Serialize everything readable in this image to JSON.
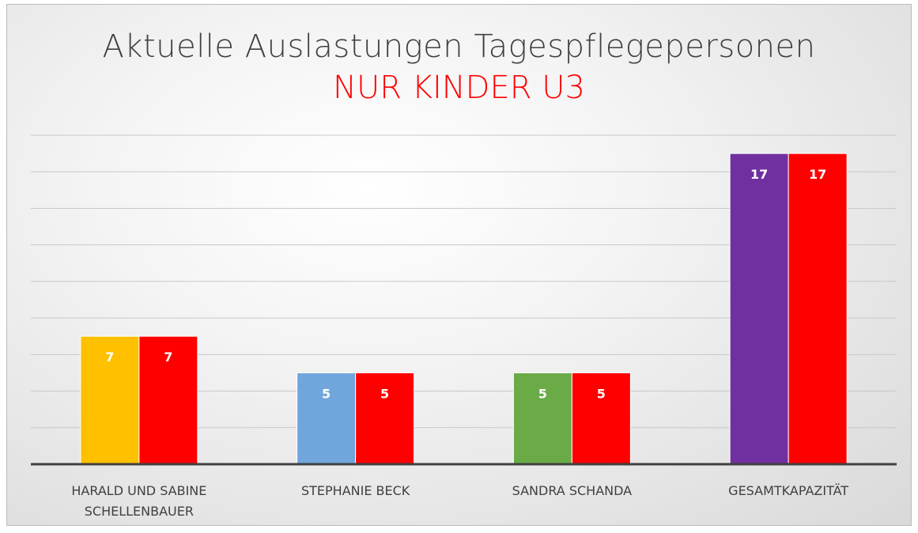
{
  "chart_data": {
    "type": "bar",
    "title": "Aktuelle Auslastungen Tagespflegepersonen",
    "subtitle": "NUR KINDER U3",
    "categories": [
      "HARALD UND SABINE SCHELLENBAUER",
      "STEPHANIE BECK",
      "SANDRA SCHANDA",
      "GESAMTKAPAZITÄT"
    ],
    "series": [
      {
        "colors": [
          "#ffc000",
          "#70a6dc",
          "#6aab48",
          "#7030a0"
        ],
        "values": [
          7,
          5,
          5,
          17
        ]
      },
      {
        "color": "#ff0000",
        "values": [
          7,
          5,
          5,
          17
        ]
      }
    ],
    "ylim": [
      0,
      18
    ],
    "yticks": [
      0,
      2,
      4,
      6,
      8,
      10,
      12,
      14,
      16,
      18
    ],
    "grid": true
  }
}
